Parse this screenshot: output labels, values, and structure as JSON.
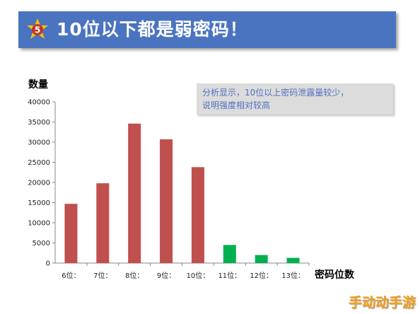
{
  "header": {
    "badge": "5",
    "title": "10位以下都是弱密码！",
    "background": "#4a74c0",
    "badge_color": "#f5c400"
  },
  "annotation": {
    "line1": "分析显示，10位以上密码泄露量较少，",
    "line2": "说明强度相对较高"
  },
  "watermark": "手动动手游",
  "chart_data": {
    "type": "bar",
    "title": "",
    "ylabel": "数量",
    "xlabel": "密码位数",
    "categories": [
      "6位：",
      "7位：",
      "8位：",
      "9位：",
      "10位：",
      "11位：",
      "12位：",
      "13位："
    ],
    "values": [
      14700,
      19800,
      34600,
      30700,
      23800,
      4500,
      2000,
      1300
    ],
    "colors": [
      "#c0504d",
      "#c0504d",
      "#c0504d",
      "#c0504d",
      "#c0504d",
      "#00b050",
      "#00b050",
      "#00b050"
    ],
    "ylim": [
      0,
      40000
    ],
    "yticks": [
      0,
      5000,
      10000,
      15000,
      20000,
      25000,
      30000,
      35000,
      40000
    ],
    "grid": false,
    "legend": "none"
  }
}
